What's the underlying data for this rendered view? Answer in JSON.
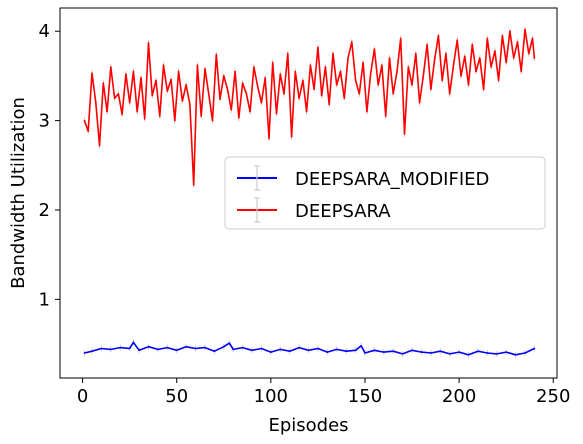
{
  "chart_data": {
    "type": "line",
    "xlabel": "Episodes",
    "ylabel": "Bandwidth Utilization",
    "xlim": [
      -12,
      252
    ],
    "ylim": [
      0.12,
      4.26
    ],
    "xticks": [
      0,
      50,
      100,
      150,
      200,
      250
    ],
    "yticks": [
      1,
      2,
      3,
      4
    ],
    "grid": false,
    "legend_position": "center-right",
    "error_bars": true,
    "series": [
      {
        "name": "DEEPSARA_MODIFIED",
        "color": "#0000ff",
        "x": [
          1,
          5,
          10,
          15,
          20,
          25,
          27,
          30,
          35,
          40,
          45,
          50,
          55,
          60,
          65,
          70,
          75,
          78,
          80,
          85,
          90,
          95,
          100,
          105,
          110,
          115,
          120,
          125,
          130,
          135,
          140,
          145,
          148,
          150,
          155,
          160,
          165,
          170,
          175,
          180,
          185,
          190,
          195,
          200,
          205,
          210,
          215,
          220,
          225,
          230,
          235,
          240
        ],
        "y": [
          0.4,
          0.42,
          0.45,
          0.44,
          0.46,
          0.45,
          0.52,
          0.43,
          0.47,
          0.44,
          0.46,
          0.43,
          0.47,
          0.45,
          0.46,
          0.42,
          0.47,
          0.51,
          0.44,
          0.46,
          0.43,
          0.45,
          0.41,
          0.44,
          0.42,
          0.46,
          0.43,
          0.45,
          0.41,
          0.44,
          0.42,
          0.43,
          0.48,
          0.4,
          0.43,
          0.41,
          0.42,
          0.39,
          0.43,
          0.41,
          0.4,
          0.42,
          0.39,
          0.41,
          0.38,
          0.42,
          0.4,
          0.39,
          0.41,
          0.38,
          0.4,
          0.45
        ]
      },
      {
        "name": "DEEPSARA",
        "color": "#ff0000",
        "x": [
          1,
          3,
          5,
          7,
          9,
          11,
          13,
          15,
          17,
          19,
          21,
          23,
          25,
          27,
          29,
          31,
          33,
          35,
          37,
          39,
          41,
          43,
          45,
          47,
          49,
          51,
          53,
          55,
          57,
          59,
          61,
          63,
          65,
          67,
          69,
          71,
          73,
          75,
          77,
          79,
          81,
          83,
          85,
          87,
          89,
          91,
          93,
          95,
          97,
          99,
          101,
          103,
          105,
          107,
          109,
          111,
          113,
          115,
          117,
          119,
          121,
          123,
          125,
          127,
          129,
          131,
          133,
          135,
          137,
          139,
          141,
          143,
          145,
          147,
          149,
          151,
          153,
          155,
          157,
          159,
          161,
          163,
          165,
          167,
          169,
          171,
          173,
          175,
          177,
          179,
          181,
          183,
          185,
          187,
          189,
          191,
          193,
          195,
          197,
          199,
          201,
          203,
          205,
          207,
          209,
          211,
          213,
          215,
          217,
          219,
          221,
          223,
          225,
          227,
          229,
          231,
          233,
          235,
          237,
          239,
          240
        ],
        "y": [
          3.0,
          2.88,
          3.53,
          3.2,
          2.72,
          3.42,
          3.1,
          3.6,
          3.25,
          3.3,
          3.07,
          3.52,
          3.2,
          3.55,
          3.1,
          3.48,
          3.02,
          3.87,
          3.28,
          3.45,
          3.05,
          3.62,
          3.33,
          3.46,
          3.0,
          3.55,
          3.22,
          3.4,
          3.18,
          2.28,
          3.62,
          3.05,
          3.58,
          3.3,
          3.0,
          3.74,
          3.24,
          3.5,
          3.35,
          3.12,
          3.55,
          3.03,
          3.42,
          3.3,
          3.1,
          3.6,
          3.38,
          3.2,
          3.48,
          2.8,
          3.65,
          3.08,
          3.52,
          3.3,
          3.75,
          2.82,
          3.55,
          3.25,
          3.45,
          3.1,
          3.62,
          3.35,
          3.82,
          3.28,
          3.6,
          3.18,
          3.75,
          3.4,
          3.55,
          3.25,
          3.7,
          3.88,
          3.45,
          3.3,
          3.65,
          3.1,
          3.52,
          3.8,
          3.4,
          3.62,
          3.05,
          3.7,
          3.3,
          3.55,
          3.92,
          2.85,
          3.6,
          3.4,
          3.75,
          3.2,
          3.5,
          3.85,
          3.35,
          3.68,
          3.95,
          3.45,
          3.75,
          3.3,
          3.62,
          3.9,
          3.5,
          3.72,
          3.4,
          3.85,
          3.55,
          3.7,
          3.35,
          3.92,
          3.6,
          3.78,
          3.45,
          3.95,
          3.65,
          4.0,
          3.7,
          3.88,
          3.55,
          4.02,
          3.75,
          3.92,
          3.7
        ]
      }
    ]
  }
}
